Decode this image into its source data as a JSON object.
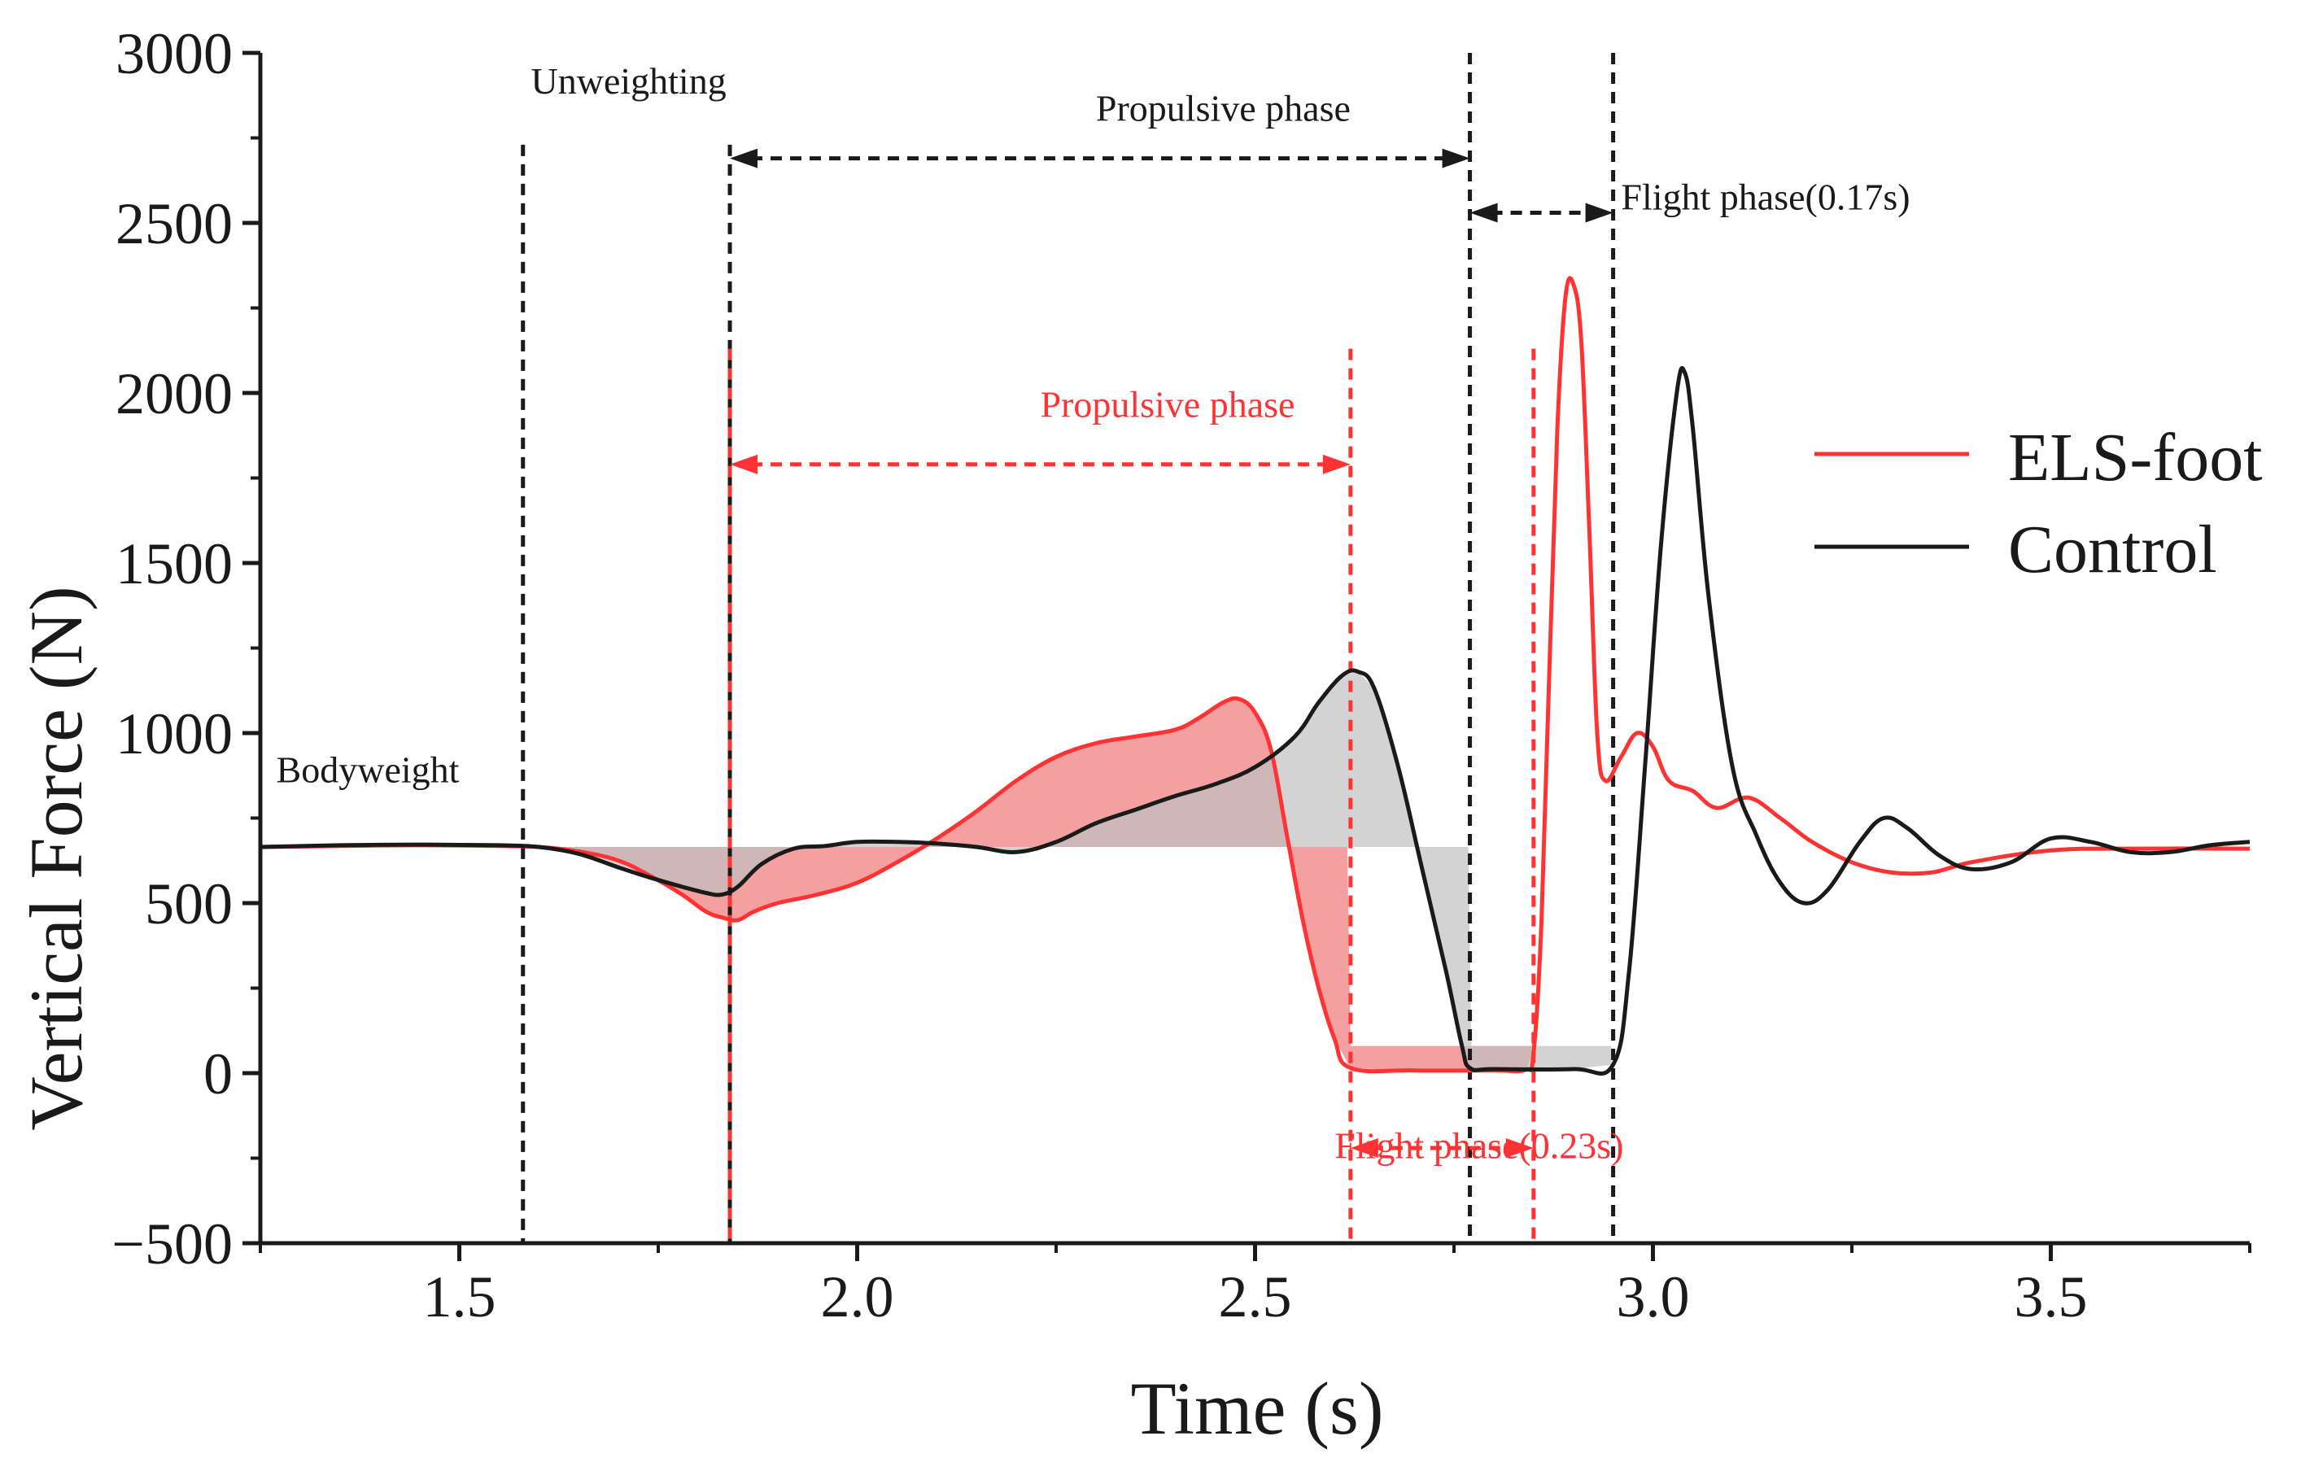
{
  "chart_data": {
    "type": "line",
    "title": "",
    "xlabel": "Time (s)",
    "ylabel": "Vertical Force  (N)",
    "xlim": [
      1.25,
      3.75
    ],
    "ylim": [
      -500,
      3000
    ],
    "xticks": [
      1.5,
      2.0,
      2.5,
      3.0,
      3.5
    ],
    "xtick_labels": [
      "1.5",
      "2.0",
      "2.5",
      "3.0",
      "3.5"
    ],
    "yticks": [
      -500,
      0,
      500,
      1000,
      1500,
      2000,
      2500,
      3000
    ],
    "ytick_labels": [
      "−500",
      "0",
      "500",
      "1000",
      "1500",
      "2000",
      "2500",
      "3000"
    ],
    "bodyweight": 665,
    "series": [
      {
        "name": "ELS-foot",
        "color": "#ff3333",
        "points": [
          [
            1.25,
            665
          ],
          [
            1.35,
            668
          ],
          [
            1.45,
            670
          ],
          [
            1.55,
            668
          ],
          [
            1.6,
            665
          ],
          [
            1.65,
            652
          ],
          [
            1.7,
            625
          ],
          [
            1.74,
            580
          ],
          [
            1.78,
            525
          ],
          [
            1.81,
            475
          ],
          [
            1.83,
            458
          ],
          [
            1.85,
            450
          ],
          [
            1.87,
            475
          ],
          [
            1.9,
            500
          ],
          [
            1.95,
            525
          ],
          [
            2.0,
            560
          ],
          [
            2.05,
            620
          ],
          [
            2.1,
            690
          ],
          [
            2.15,
            770
          ],
          [
            2.2,
            860
          ],
          [
            2.25,
            930
          ],
          [
            2.3,
            970
          ],
          [
            2.35,
            990
          ],
          [
            2.4,
            1010
          ],
          [
            2.43,
            1045
          ],
          [
            2.46,
            1090
          ],
          [
            2.48,
            1100
          ],
          [
            2.5,
            1060
          ],
          [
            2.52,
            950
          ],
          [
            2.54,
            700
          ],
          [
            2.56,
            450
          ],
          [
            2.58,
            250
          ],
          [
            2.6,
            100
          ],
          [
            2.62,
            15
          ],
          [
            2.7,
            8
          ],
          [
            2.8,
            8
          ],
          [
            2.84,
            10
          ],
          [
            2.85,
            60
          ],
          [
            2.86,
            450
          ],
          [
            2.87,
            1200
          ],
          [
            2.88,
            1900
          ],
          [
            2.89,
            2280
          ],
          [
            2.9,
            2320
          ],
          [
            2.91,
            2150
          ],
          [
            2.92,
            1600
          ],
          [
            2.93,
            1000
          ],
          [
            2.94,
            860
          ],
          [
            2.96,
            930
          ],
          [
            2.98,
            1000
          ],
          [
            3.0,
            960
          ],
          [
            3.02,
            860
          ],
          [
            3.05,
            830
          ],
          [
            3.08,
            780
          ],
          [
            3.12,
            810
          ],
          [
            3.16,
            750
          ],
          [
            3.2,
            680
          ],
          [
            3.25,
            620
          ],
          [
            3.3,
            590
          ],
          [
            3.35,
            590
          ],
          [
            3.4,
            620
          ],
          [
            3.5,
            655
          ],
          [
            3.6,
            660
          ],
          [
            3.75,
            660
          ]
        ]
      },
      {
        "name": "Control",
        "color": "#1a1a1a",
        "points": [
          [
            1.25,
            665
          ],
          [
            1.35,
            670
          ],
          [
            1.45,
            672
          ],
          [
            1.55,
            670
          ],
          [
            1.6,
            665
          ],
          [
            1.65,
            645
          ],
          [
            1.7,
            605
          ],
          [
            1.74,
            575
          ],
          [
            1.78,
            548
          ],
          [
            1.81,
            530
          ],
          [
            1.83,
            525
          ],
          [
            1.85,
            548
          ],
          [
            1.88,
            615
          ],
          [
            1.92,
            660
          ],
          [
            1.96,
            668
          ],
          [
            2.0,
            680
          ],
          [
            2.05,
            680
          ],
          [
            2.1,
            675
          ],
          [
            2.15,
            665
          ],
          [
            2.2,
            650
          ],
          [
            2.25,
            680
          ],
          [
            2.3,
            735
          ],
          [
            2.35,
            775
          ],
          [
            2.4,
            815
          ],
          [
            2.45,
            850
          ],
          [
            2.5,
            900
          ],
          [
            2.55,
            990
          ],
          [
            2.58,
            1090
          ],
          [
            2.61,
            1170
          ],
          [
            2.63,
            1180
          ],
          [
            2.65,
            1130
          ],
          [
            2.68,
            900
          ],
          [
            2.71,
            600
          ],
          [
            2.74,
            300
          ],
          [
            2.76,
            80
          ],
          [
            2.77,
            15
          ],
          [
            2.8,
            12
          ],
          [
            2.9,
            12
          ],
          [
            2.95,
            25
          ],
          [
            2.97,
            300
          ],
          [
            2.99,
            900
          ],
          [
            3.01,
            1550
          ],
          [
            3.03,
            2000
          ],
          [
            3.04,
            2060
          ],
          [
            3.05,
            1900
          ],
          [
            3.07,
            1400
          ],
          [
            3.1,
            900
          ],
          [
            3.13,
            700
          ],
          [
            3.16,
            560
          ],
          [
            3.19,
            500
          ],
          [
            3.22,
            540
          ],
          [
            3.26,
            680
          ],
          [
            3.29,
            750
          ],
          [
            3.32,
            720
          ],
          [
            3.36,
            640
          ],
          [
            3.4,
            600
          ],
          [
            3.45,
            620
          ],
          [
            3.5,
            690
          ],
          [
            3.55,
            680
          ],
          [
            3.6,
            650
          ],
          [
            3.65,
            650
          ],
          [
            3.7,
            670
          ],
          [
            3.75,
            680
          ]
        ]
      }
    ],
    "shaded_regions": [
      {
        "series": "ELS-foot",
        "x_start": 1.58,
        "x_end": 2.85,
        "baseline": "bodyweight_then_zero",
        "color": "#f08080"
      },
      {
        "series": "Control",
        "x_start": 1.58,
        "x_end": 2.95,
        "baseline": "bodyweight_then_zero",
        "color": "#c0c0c0"
      }
    ],
    "vertical_lines": [
      {
        "x": 1.58,
        "color": "black",
        "style": "dashed"
      },
      {
        "x": 1.84,
        "color": "black",
        "style": "dashed"
      },
      {
        "x": 2.77,
        "color": "black",
        "style": "dashed"
      },
      {
        "x": 2.95,
        "color": "black",
        "style": "dashed"
      },
      {
        "x": 1.84,
        "color": "red",
        "style": "dashed"
      },
      {
        "x": 2.62,
        "color": "red",
        "style": "dashed"
      },
      {
        "x": 2.85,
        "color": "red",
        "style": "dashed"
      }
    ],
    "annotations": [
      {
        "text": "Bodyweight",
        "x": 1.27,
        "y": 855,
        "color": "black"
      },
      {
        "text": "Unweighting",
        "x": 1.59,
        "y": 2880,
        "color": "black"
      },
      {
        "text": "Propulsive phase",
        "x": 2.3,
        "y": 2800,
        "color": "black"
      },
      {
        "text": "Flight phase(0.17s)",
        "x": 2.96,
        "y": 2540,
        "color": "black"
      },
      {
        "text": "Propulsive phase",
        "x": 2.23,
        "y": 1930,
        "color": "red"
      },
      {
        "text": "Flight phase(0.23s)",
        "x": 2.6,
        "y": -250,
        "color": "red"
      }
    ],
    "arrows": [
      {
        "x1": 1.84,
        "x2": 2.77,
        "y": 2690,
        "color": "black"
      },
      {
        "x1": 2.77,
        "x2": 2.95,
        "y": 2530,
        "color": "black"
      },
      {
        "x1": 1.84,
        "x2": 2.62,
        "y": 1790,
        "color": "red"
      },
      {
        "x1": 2.62,
        "x2": 2.85,
        "y": -220,
        "color": "red"
      }
    ],
    "legend": {
      "position": "right",
      "entries": [
        "ELS-foot",
        "Control"
      ]
    }
  }
}
